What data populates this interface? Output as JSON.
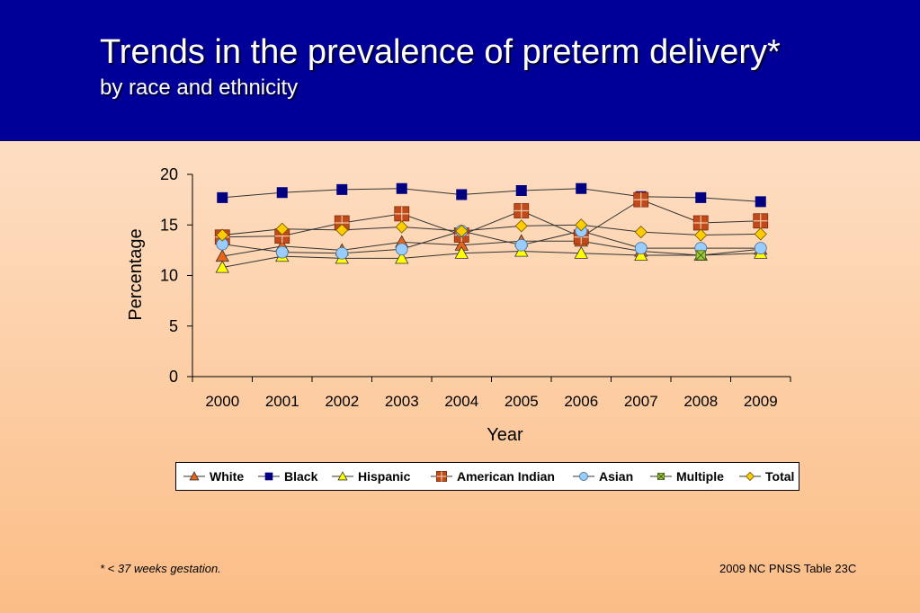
{
  "header": {
    "title": "Trends in the prevalence of preterm delivery*",
    "subtitle": "by race and ethnicity"
  },
  "footnote": "*  < 37 weeks gestation.",
  "source": "2009 NC PNSS Table 23C",
  "chart_data": {
    "type": "line",
    "title": "",
    "xlabel": "Year",
    "ylabel": "Percentage",
    "categories": [
      "2000",
      "2001",
      "2002",
      "2003",
      "2004",
      "2005",
      "2006",
      "2007",
      "2008",
      "2009"
    ],
    "ylim": [
      0,
      20
    ],
    "yticks": [
      "0",
      "5",
      "10",
      "15",
      "20"
    ],
    "grid": false,
    "legend_position": "bottom",
    "series": [
      {
        "name": "White",
        "marker": "triangle",
        "color": "#e8641a",
        "values": [
          11.9,
          12.9,
          12.5,
          13.3,
          13.0,
          13.4,
          13.4,
          12.4,
          12.0,
          12.6
        ]
      },
      {
        "name": "Black",
        "marker": "square",
        "color": "#000080",
        "values": [
          17.7,
          18.2,
          18.5,
          18.6,
          18.0,
          18.4,
          18.6,
          17.8,
          17.7,
          17.3
        ]
      },
      {
        "name": "Hispanic",
        "marker": "triangle",
        "color": "#ffff00",
        "values": [
          10.8,
          11.9,
          11.7,
          11.7,
          12.2,
          12.4,
          12.2,
          12.0,
          12.0,
          12.2
        ]
      },
      {
        "name": "American Indian",
        "marker": "square-cross",
        "color": "#c04a1a",
        "values": [
          13.8,
          13.9,
          15.2,
          16.1,
          14.0,
          16.4,
          13.8,
          17.5,
          15.2,
          15.4
        ]
      },
      {
        "name": "Asian",
        "marker": "circle",
        "color": "#99ccff",
        "values": [
          13.1,
          12.3,
          12.2,
          12.6,
          14.4,
          13.0,
          14.4,
          12.7,
          12.7,
          12.7
        ]
      },
      {
        "name": "Multiple",
        "marker": "square-x",
        "color": "#99cc33",
        "values": [
          null,
          null,
          null,
          null,
          null,
          null,
          null,
          null,
          12.0,
          null
        ]
      },
      {
        "name": "Total",
        "marker": "diamond",
        "color": "#ffcc00",
        "values": [
          14.0,
          14.6,
          14.5,
          14.8,
          14.4,
          14.9,
          15.0,
          14.3,
          14.0,
          14.1
        ]
      }
    ]
  }
}
